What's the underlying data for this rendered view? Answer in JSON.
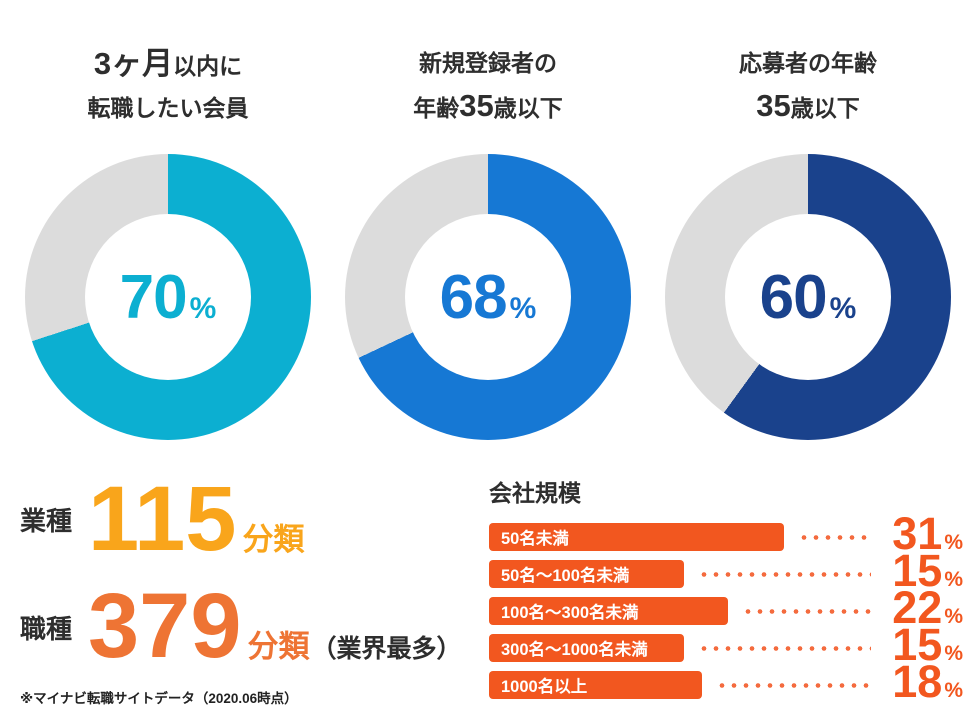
{
  "page": {
    "background": "#ffffff",
    "text_color": "#2e2e2e"
  },
  "chart_data": [
    {
      "type": "pie",
      "title": "3ヶ月以内に転職したい会員",
      "title_lines": [
        [
          {
            "text": "3ヶ月",
            "big": true
          },
          {
            "text": "以内に",
            "big": false
          }
        ],
        [
          {
            "text": "転職したい会員",
            "big": false
          }
        ]
      ],
      "values": [
        70,
        30
      ],
      "center_label": "70",
      "unit": "%",
      "color": "#0CAFD1",
      "track_color": "#DCDCDC",
      "legend": "off"
    },
    {
      "type": "pie",
      "title": "新規登録者の年齢35歳以下",
      "title_lines": [
        [
          {
            "text": "新規登録者の",
            "big": false
          }
        ],
        [
          {
            "text": "年齢",
            "big": false
          },
          {
            "text": "35",
            "big": true
          },
          {
            "text": "歳以下",
            "big": false
          }
        ]
      ],
      "values": [
        68,
        32
      ],
      "center_label": "68",
      "unit": "%",
      "color": "#1678D4",
      "track_color": "#DCDCDC",
      "legend": "off"
    },
    {
      "type": "pie",
      "title": "応募者の年齢35歳以下",
      "title_lines": [
        [
          {
            "text": "応募者の年齢",
            "big": false
          }
        ],
        [
          {
            "text": "35",
            "big": true
          },
          {
            "text": "歳以下",
            "big": false
          }
        ]
      ],
      "values": [
        60,
        40
      ],
      "center_label": "60",
      "unit": "%",
      "color": "#1A428C",
      "track_color": "#DCDCDC",
      "legend": "off"
    },
    {
      "type": "bar",
      "title": "会社規模",
      "orientation": "horizontal",
      "categories": [
        "50名未満",
        "50名〜100名未満",
        "100名〜300名未満",
        "300名〜1000名未満",
        "1000名以上"
      ],
      "values": [
        31,
        15,
        22,
        15,
        18
      ],
      "unit": "%",
      "bar_color": "#F2571F",
      "dot_color": "#F46B3E",
      "value_color": "#F2571F",
      "grid": "off"
    }
  ],
  "stats": {
    "rows": [
      {
        "label": "業種",
        "value": "115",
        "suffix": "分類",
        "note": "",
        "color": "#F9A51B"
      },
      {
        "label": "職種",
        "value": "379",
        "suffix": "分類",
        "note": "（業界最多）",
        "color": "#EE7434"
      }
    ],
    "footnote": "※マイナビ転職サイトデータ（2020.06時点）"
  }
}
